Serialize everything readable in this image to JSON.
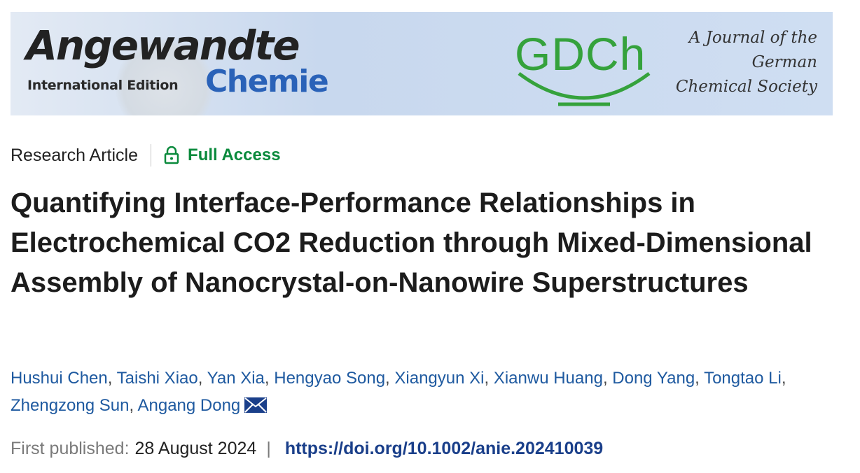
{
  "banner": {
    "journal_name": "Angewandte",
    "journal_edition": "International Edition",
    "journal_sub": "Chemie",
    "society_logo": "GDCh",
    "society_lines": [
      "A Journal of the",
      "German",
      "Chemical Society"
    ],
    "society_logo_color": "#35a23c",
    "chemie_color": "#2a62b8"
  },
  "article": {
    "type": "Research Article",
    "access_label": "Full Access",
    "access_icon": "lock-icon",
    "access_color": "#0a8a3c",
    "title": "Quantifying Interface-Performance Relationships in Electrochemical CO2 Reduction through Mixed-Dimensional Assembly of Nanocrystal-on-Nanowire Superstructures"
  },
  "authors": [
    "Hushui Chen",
    "Taishi Xiao",
    "Yan Xia",
    "Hengyao Song",
    "Xiangyun Xi",
    "Xianwu Huang",
    "Dong Yang",
    "Tongtao Li",
    "Zhengzong Sun",
    "Angang Dong"
  ],
  "corresponding_icon": "mail-icon",
  "publication": {
    "label": "First published:",
    "date": "28 August 2024",
    "separator": "|",
    "doi": "https://doi.org/10.1002/anie.202410039"
  },
  "colors": {
    "author_link": "#1f5aa0",
    "doi_link": "#1a3f8a"
  }
}
